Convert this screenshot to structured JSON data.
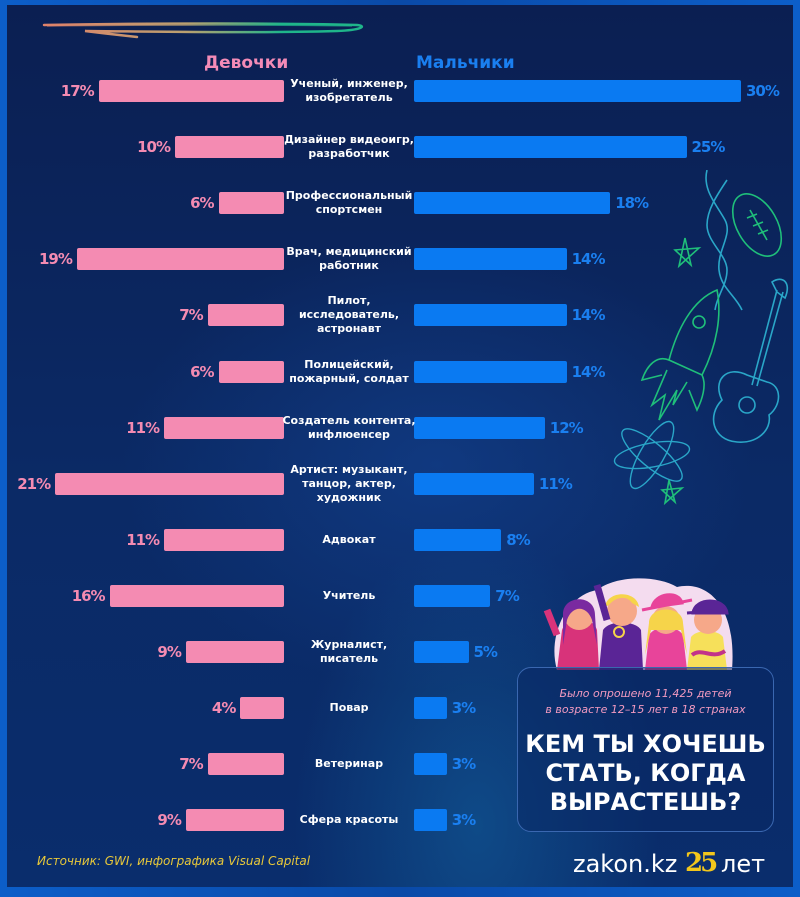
{
  "chart_data": {
    "type": "bar",
    "title": "КЕМ ТЫ ХОЧЕШЬ СТАТЬ, КОГДА ВЫРАСТЕШЬ?",
    "subtitle": "Было опрошено 11,425 детей в возрасте 12–15 лет в 18 странах",
    "orientation": "horizontal-butterfly",
    "unit": "%",
    "categories": [
      "Ученый, инженер, изобретатель",
      "Дизайнер видеоигр, разработчик",
      "Профессиональный спортсмен",
      "Врач, медицинский работник",
      "Пилот, исследователь, астронавт",
      "Полицейский, пожарный, солдат",
      "Создатель контента, инфлюенсер",
      "Артист: музыкант, танцор, актер, художник",
      "Адвокат",
      "Учитель",
      "Журналист, писатель",
      "Повар",
      "Ветеринар",
      "Сфера красоты"
    ],
    "label_lines": [
      [
        "Ученый, инженер,",
        "изобретатель"
      ],
      [
        "Дизайнер видеоигр,",
        "разработчик"
      ],
      [
        "Профессиональный",
        "спортсмен"
      ],
      [
        "Врач, медицинский",
        "работник"
      ],
      [
        "Пилот,",
        "исследователь,",
        "астронавт"
      ],
      [
        "Полицейский,",
        "пожарный, солдат"
      ],
      [
        "Создатель контента,",
        "инфлюенсер"
      ],
      [
        "Артист: музыкант,",
        "танцор, актер,",
        "художник"
      ],
      [
        "Адвокат"
      ],
      [
        "Учитель"
      ],
      [
        "Журналист,",
        "писатель"
      ],
      [
        "Повар"
      ],
      [
        "Ветеринар"
      ],
      [
        "Сфера красоты"
      ]
    ],
    "series": [
      {
        "name": "Девочки",
        "color": "#f48bb2",
        "values": [
          17,
          10,
          6,
          19,
          7,
          6,
          11,
          21,
          11,
          16,
          9,
          4,
          7,
          9
        ]
      },
      {
        "name": "Мальчики",
        "color": "#0a7af2",
        "values": [
          30,
          25,
          18,
          14,
          14,
          14,
          12,
          11,
          8,
          7,
          5,
          3,
          3,
          3
        ]
      }
    ],
    "xlim": [
      0,
      30
    ],
    "grid": false,
    "legend": "top"
  },
  "headers": {
    "girls": "Девочки",
    "boys": "Мальчики"
  },
  "info_box": {
    "subtitle_line1": "Было опрошено 11,425 детей",
    "subtitle_line2": "в возрасте 12–15 лет в 18 странах",
    "title_line1": "КЕМ ТЫ ХОЧЕШЬ",
    "title_line2": "СТАТЬ, КОГДА",
    "title_line3": "ВЫРАСТЕШЬ?"
  },
  "source": "Источник: GWI, инфографика Visual Capital",
  "logo": {
    "site": "zakon.kz",
    "anniversary_number": "25",
    "anniversary_word": "лет"
  },
  "colors": {
    "girls": "#f48bb2",
    "boys": "#0a7af2",
    "source": "#e8c83a",
    "logo_accent": "#f2c61c"
  }
}
